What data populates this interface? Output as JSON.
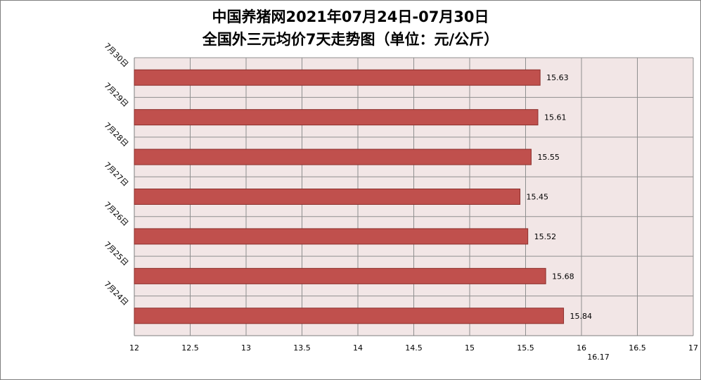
{
  "chart_data": {
    "type": "bar",
    "orientation": "horizontal",
    "title": "中国养猪网2021年07月24日-07月30日",
    "subtitle": "全国外三元均价7天走势图（单位：元/公斤）",
    "categories": [
      "7月30日",
      "7月29日",
      "7月28日",
      "7月27日",
      "7月26日",
      "7月25日",
      "7月24日"
    ],
    "values": [
      15.63,
      15.61,
      15.55,
      15.45,
      15.52,
      15.68,
      15.84
    ],
    "value_labels": [
      "15.63",
      "15.61",
      "15.55",
      "15.45",
      "15.52",
      "15.68",
      "15.84"
    ],
    "xlim": [
      12,
      17
    ],
    "x_ticks": [
      12,
      12.5,
      13,
      13.5,
      14,
      14.5,
      15,
      15.5,
      16,
      16.5,
      17
    ],
    "x_tick_labels": [
      "12",
      "12.5",
      "13",
      "13.5",
      "14",
      "14.5",
      "15",
      "15.5",
      "16",
      "16.5",
      "17"
    ],
    "extra_annotation": {
      "value": 16.17,
      "text": "16.17"
    },
    "grid": true,
    "legend": "none",
    "colors": {
      "bar_fill": "#c0504d",
      "bar_stroke": "#8c2f2c",
      "plot_background": "#f2e6e6",
      "grid": "#8f8f8f"
    }
  }
}
